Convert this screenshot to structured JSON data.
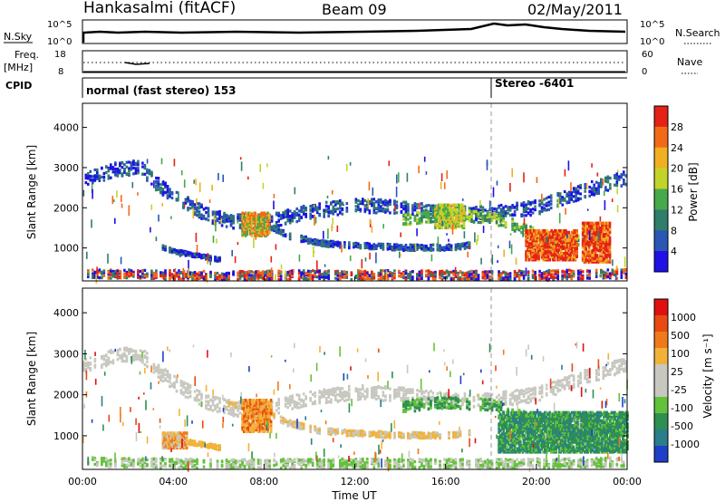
{
  "header": {
    "station": "Hankasalmi (fitACF)",
    "beam": "Beam 09",
    "date": "02/May/2011"
  },
  "strip_labels": {
    "nsky": "N.Sky",
    "nsearch": "N.Search",
    "freq": "Freq.",
    "freq_unit": "[MHz]",
    "nave": "Nave",
    "cpid": "CPID",
    "nsky_top": "10^5",
    "nsky_bot": "10^0",
    "nsearch_top": "10^5",
    "nsearch_bot": "10^0",
    "freq_top": "18",
    "freq_bot": "8",
    "nave_top": "60",
    "nave_bot": "0"
  },
  "cpid": {
    "left": "normal (fast stereo) 153",
    "right": "Stereo -6401"
  },
  "chart_data": [
    {
      "type": "heatmap",
      "name": "power",
      "ylabel": "Slant Range [km]",
      "yticks": [
        "1000",
        "2000",
        "3000",
        "4000"
      ],
      "colorbar_label": "Power [dB]",
      "colorbar_ticks": [
        "28",
        "24",
        "20",
        "16",
        "12",
        "8",
        "4"
      ],
      "colors": [
        "#1e10e6",
        "#2a56b4",
        "#2f7d6a",
        "#47a94a",
        "#c2d42a",
        "#f0b021",
        "#f26a18",
        "#e42216"
      ]
    },
    {
      "type": "heatmap",
      "name": "velocity",
      "ylabel": "Slant Range [km]",
      "yticks": [
        "1000",
        "2000",
        "3000",
        "4000"
      ],
      "colorbar_label": "Velocity [m s⁻¹]",
      "colorbar_ticks": [
        "1000",
        "500",
        "100",
        "25",
        "-25",
        "-100",
        "-500",
        "-1000"
      ],
      "colors": [
        "#1e3fc8",
        "#2a7d8a",
        "#2d8f52",
        "#62c23a",
        "#c8c8c0",
        "#c8c8c0",
        "#f2b23a",
        "#f07a1a",
        "#e84a12",
        "#e01010"
      ],
      "xticks": [
        "00:00",
        "04:00",
        "08:00",
        "12:00",
        "16:00",
        "20:00",
        "00:00"
      ],
      "xlabel": "Time UT"
    }
  ]
}
